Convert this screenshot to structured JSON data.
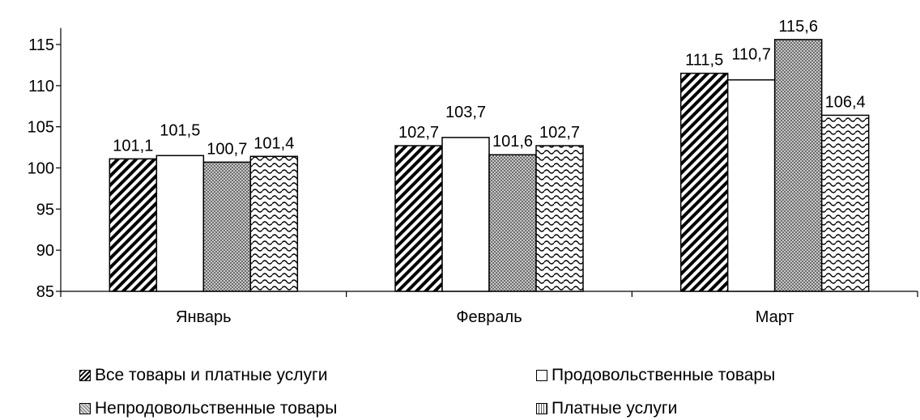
{
  "chart_data": {
    "type": "bar",
    "categories": [
      "Январь",
      "Февраль",
      "Март"
    ],
    "series": [
      {
        "name": "Все товары и платные услуги",
        "values": [
          101.1,
          102.7,
          111.5
        ],
        "labels": [
          "101,1",
          "102,7",
          "111,5"
        ],
        "pattern": "diagonal-hatch"
      },
      {
        "name": "Продовольственные товары",
        "values": [
          101.5,
          103.7,
          110.7
        ],
        "labels": [
          "101,5",
          "103,7",
          "110,7"
        ],
        "pattern": "white"
      },
      {
        "name": "Непродовольственные товары",
        "values": [
          100.7,
          101.6,
          115.6
        ],
        "labels": [
          "100,7",
          "101,6",
          "115,6"
        ],
        "pattern": "dotted-grey"
      },
      {
        "name": "Платные услуги",
        "values": [
          101.4,
          102.7,
          106.4
        ],
        "labels": [
          "101,4",
          "102,7",
          "106,4"
        ],
        "pattern": "wave"
      }
    ],
    "ylim": [
      85,
      117
    ],
    "yticks": [
      85,
      90,
      95,
      100,
      105,
      110,
      115
    ],
    "xlabel": "",
    "ylabel": "",
    "title": "",
    "grid": false,
    "legend_position": "bottom"
  }
}
